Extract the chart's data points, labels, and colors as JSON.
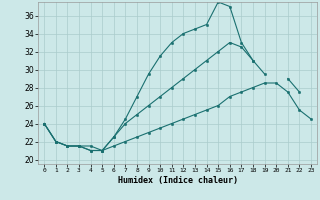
{
  "xlabel": "Humidex (Indice chaleur)",
  "x_ticks": [
    0,
    1,
    2,
    3,
    4,
    5,
    6,
    7,
    8,
    9,
    10,
    11,
    12,
    13,
    14,
    15,
    16,
    17,
    18,
    19,
    20,
    21,
    22,
    23
  ],
  "xlim": [
    -0.5,
    23.5
  ],
  "ylim": [
    19.5,
    37.5
  ],
  "y_ticks": [
    20,
    22,
    24,
    26,
    28,
    30,
    32,
    34,
    36
  ],
  "bg_color": "#cce8e8",
  "grid_color": "#aacccc",
  "line_color": "#1a7070",
  "series": [
    [
      24,
      22,
      21.5,
      21.5,
      21,
      21,
      22.5,
      24.5,
      27,
      29.5,
      31.5,
      33,
      34,
      34.5,
      35,
      37.5,
      37,
      33,
      31,
      null,
      null,
      null,
      null,
      null
    ],
    [
      24,
      22,
      21.5,
      21.5,
      21,
      21,
      22.5,
      24,
      25,
      26,
      27,
      28,
      29,
      30,
      31,
      32,
      33,
      32.5,
      31,
      29.5,
      null,
      null,
      null,
      null
    ],
    [
      24,
      22,
      21.5,
      21.5,
      21.5,
      21,
      21.5,
      22,
      22.5,
      23,
      23.5,
      24,
      24.5,
      25,
      25.5,
      26,
      27,
      27.5,
      28,
      28.5,
      28.5,
      27.5,
      25.5,
      24.5
    ],
    [
      null,
      null,
      null,
      null,
      null,
      null,
      null,
      null,
      null,
      null,
      null,
      null,
      null,
      null,
      null,
      null,
      null,
      null,
      null,
      null,
      null,
      29,
      27.5,
      null
    ]
  ]
}
